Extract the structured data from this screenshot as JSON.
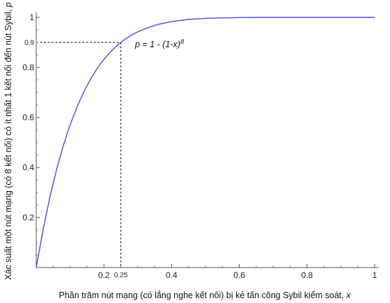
{
  "chart_data": {
    "type": "line",
    "title": "",
    "xlabel": "Phần trăm nút mạng (có lắng nghe kết nối) bị kẻ tấn công Sybil kiểm soát, ",
    "xlabel_var": "x",
    "ylabel": "Xác suất một nút mạng (có 8 kết nối) có ít nhất 1 kết nối đến nút Sybil, ",
    "ylabel_var": "p",
    "xlim": [
      0,
      1
    ],
    "ylim": [
      0,
      1
    ],
    "x_ticks": [
      {
        "value": 0.2,
        "label": "0.2"
      },
      {
        "value": 0.4,
        "label": "0.4"
      },
      {
        "value": 0.6,
        "label": "0.6"
      },
      {
        "value": 0.8,
        "label": "0.8"
      },
      {
        "value": 1,
        "label": "1"
      }
    ],
    "y_ticks": [
      {
        "value": 0.2,
        "label": "0.2"
      },
      {
        "value": 0.4,
        "label": "0.4"
      },
      {
        "value": 0.6,
        "label": "0.6"
      },
      {
        "value": 0.8,
        "label": "0.8"
      },
      {
        "value": 1,
        "label": "1"
      }
    ],
    "series": [
      {
        "color": "#4a4ae6",
        "x": [
          0,
          0.02,
          0.04,
          0.06,
          0.08,
          0.1,
          0.12,
          0.14,
          0.16,
          0.18,
          0.2,
          0.22,
          0.24,
          0.25,
          0.26,
          0.28,
          0.3,
          0.33,
          0.36,
          0.4,
          0.45,
          0.5,
          0.55,
          0.6,
          0.65,
          0.7,
          0.8,
          0.9,
          1
        ],
        "y": [
          0,
          0.149,
          0.279,
          0.391,
          0.487,
          0.57,
          0.64,
          0.701,
          0.752,
          0.796,
          0.832,
          0.863,
          0.889,
          0.9,
          0.91,
          0.928,
          0.942,
          0.959,
          0.972,
          0.983,
          0.992,
          0.996,
          0.998,
          0.999,
          1.0,
          1.0,
          1.0,
          1.0,
          1.0
        ]
      }
    ],
    "annotations": {
      "formula": "p = 1 - (1-x)",
      "formula_exponent": "8",
      "marker_x": 0.25,
      "marker_x_label": "0.25",
      "marker_y": 0.9,
      "marker_y_label": "0.9"
    },
    "grid": false
  }
}
